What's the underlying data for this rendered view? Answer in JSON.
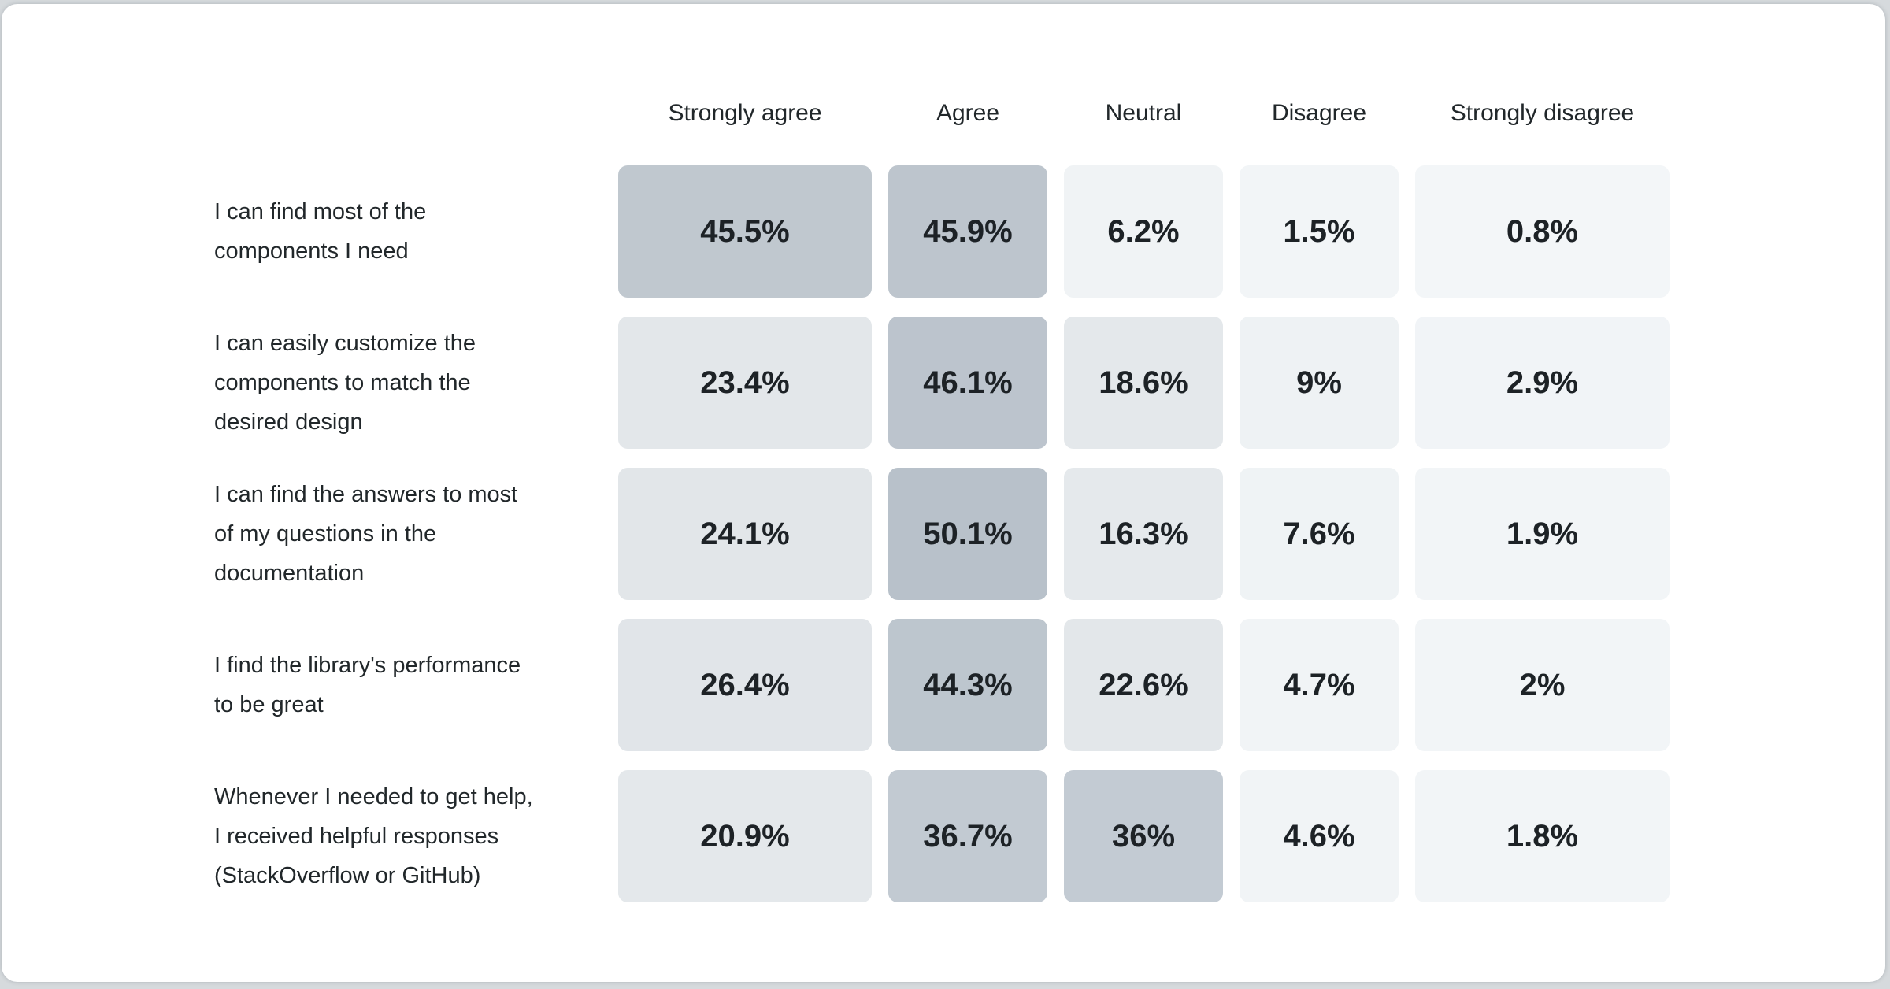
{
  "page": {
    "background_color": "#d6dadd",
    "card_background_color": "#ffffff"
  },
  "table": {
    "column_headers": [
      "Strongly agree",
      "Agree",
      "Neutral",
      "Disagree",
      "Strongly disagree"
    ],
    "rows": [
      {
        "label": "I can find most of the components I need",
        "label_lines": [
          "I can find most of the",
          "components I need"
        ],
        "cells": [
          {
            "display": "45.5%",
            "color": "#c0c8cf"
          },
          {
            "display": "45.9%",
            "color": "#bdc5cd"
          },
          {
            "display": "6.2%",
            "color": "#f0f3f5"
          },
          {
            "display": "1.5%",
            "color": "#f2f5f7"
          },
          {
            "display": "0.8%",
            "color": "#f3f6f8"
          }
        ]
      },
      {
        "label": "I can easily customize the components to match the desired design",
        "label_lines": [
          "I can easily customize the",
          "components to match the",
          "desired design"
        ],
        "cells": [
          {
            "display": "23.4%",
            "color": "#e3e7ea"
          },
          {
            "display": "46.1%",
            "color": "#bcc4cd"
          },
          {
            "display": "18.6%",
            "color": "#e4e8eb"
          },
          {
            "display": "9%",
            "color": "#eef2f4"
          },
          {
            "display": "2.9%",
            "color": "#f1f4f7"
          }
        ]
      },
      {
        "label": "I can find the answers to most of my questions in the documentation",
        "label_lines": [
          "I can find the answers to most",
          "of my questions in the",
          "documentation"
        ],
        "cells": [
          {
            "display": "24.1%",
            "color": "#e2e6e9"
          },
          {
            "display": "50.1%",
            "color": "#b8c1ca"
          },
          {
            "display": "16.3%",
            "color": "#e5e9ec"
          },
          {
            "display": "7.6%",
            "color": "#eff3f5"
          },
          {
            "display": "1.9%",
            "color": "#f2f5f7"
          }
        ]
      },
      {
        "label": "I find the library's performance to be great",
        "label_lines": [
          "I find the library's performance",
          "to be great"
        ],
        "cells": [
          {
            "display": "26.4%",
            "color": "#e1e5e9"
          },
          {
            "display": "44.3%",
            "color": "#bdc6ce"
          },
          {
            "display": "22.6%",
            "color": "#e3e7ea"
          },
          {
            "display": "4.7%",
            "color": "#f1f4f6"
          },
          {
            "display": "2%",
            "color": "#f2f5f7"
          }
        ]
      },
      {
        "label": "Whenever I needed to get help, I received helpful responses (StackOverflow or GitHub)",
        "label_lines": [
          "Whenever I needed to get help,",
          "I received helpful responses",
          "(StackOverflow or GitHub)"
        ],
        "cells": [
          {
            "display": "20.9%",
            "color": "#e4e8eb"
          },
          {
            "display": "36.7%",
            "color": "#c2cad2"
          },
          {
            "display": "36%",
            "color": "#c3cbd3"
          },
          {
            "display": "4.6%",
            "color": "#f1f4f6"
          },
          {
            "display": "1.8%",
            "color": "#f2f5f7"
          }
        ]
      }
    ]
  },
  "chart_data": {
    "type": "heatmap",
    "title": "",
    "columns": [
      "Strongly agree",
      "Agree",
      "Neutral",
      "Disagree",
      "Strongly disagree"
    ],
    "rows": [
      "I can find most of the components I need",
      "I can easily customize the components to match the desired design",
      "I can find the answers to most of my questions in the documentation",
      "I find the library's performance to be great",
      "Whenever I needed to get help, I received helpful responses (StackOverflow or GitHub)"
    ],
    "values": [
      [
        45.5,
        45.9,
        6.2,
        1.5,
        0.8
      ],
      [
        23.4,
        46.1,
        18.6,
        9,
        2.9
      ],
      [
        24.1,
        50.1,
        16.3,
        7.6,
        1.9
      ],
      [
        26.4,
        44.3,
        22.6,
        4.7,
        2
      ],
      [
        20.9,
        36.7,
        36,
        4.6,
        1.8
      ]
    ],
    "value_format": "percent",
    "color_scale": {
      "min_color": "#f3f6f8",
      "max_color": "#b8c1ca",
      "domain": [
        0,
        50.1
      ]
    },
    "legend_position": "none",
    "grid": false
  }
}
